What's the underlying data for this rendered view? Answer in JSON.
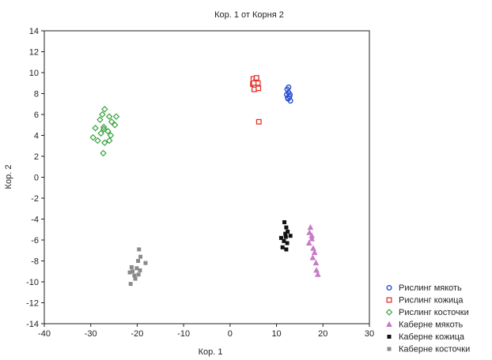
{
  "chart_data": {
    "type": "scatter",
    "title": "Кор. 1 от Корня 2",
    "xlabel": "Кор. 1",
    "ylabel": "Кор. 2",
    "xlim": [
      -40,
      30
    ],
    "ylim": [
      -14,
      14
    ],
    "xticks": [
      -40,
      -30,
      -20,
      -10,
      0,
      10,
      20,
      30
    ],
    "yticks": [
      -14,
      -12,
      -10,
      -8,
      -6,
      -4,
      -2,
      0,
      2,
      4,
      6,
      8,
      10,
      12,
      14
    ],
    "grid": false,
    "legend_position": "bottom-right",
    "series": [
      {
        "name": "Рислинг мякоть",
        "marker": "circle-open",
        "color": "#2a4fd1",
        "points": [
          [
            12.3,
            8.4
          ],
          [
            12.6,
            8.1
          ],
          [
            12.2,
            7.9
          ],
          [
            12.8,
            7.7
          ],
          [
            12.5,
            7.5
          ],
          [
            13.0,
            7.3
          ],
          [
            12.4,
            7.6
          ],
          [
            12.9,
            7.9
          ],
          [
            12.6,
            8.6
          ]
        ]
      },
      {
        "name": "Рислинг кожица",
        "marker": "square-open",
        "color": "#e5322a",
        "points": [
          [
            5.0,
            9.4
          ],
          [
            5.6,
            9.2
          ],
          [
            4.9,
            8.9
          ],
          [
            5.4,
            8.7
          ],
          [
            6.0,
            9.0
          ],
          [
            5.2,
            8.4
          ],
          [
            6.1,
            8.5
          ],
          [
            5.7,
            9.5
          ],
          [
            5.1,
            9.0
          ],
          [
            6.2,
            5.3
          ]
        ]
      },
      {
        "name": "Рислинг косточки",
        "marker": "diamond-open",
        "color": "#3aa13e",
        "points": [
          [
            -27.0,
            6.5
          ],
          [
            -27.5,
            6.0
          ],
          [
            -26.0,
            5.8
          ],
          [
            -24.5,
            5.8
          ],
          [
            -28.0,
            5.5
          ],
          [
            -25.5,
            5.3
          ],
          [
            -24.8,
            5.0
          ],
          [
            -29.0,
            4.7
          ],
          [
            -27.2,
            4.8
          ],
          [
            -26.3,
            4.4
          ],
          [
            -27.8,
            4.2
          ],
          [
            -25.7,
            4.0
          ],
          [
            -29.5,
            3.8
          ],
          [
            -28.5,
            3.5
          ],
          [
            -27.0,
            3.3
          ],
          [
            -26.0,
            3.5
          ],
          [
            -27.3,
            2.3
          ],
          [
            -27.2,
            4.6
          ]
        ]
      },
      {
        "name": "Каберне мякоть",
        "marker": "triangle",
        "color": "#c77ac8",
        "points": [
          [
            17.3,
            -4.8
          ],
          [
            17.1,
            -5.3
          ],
          [
            17.6,
            -5.9
          ],
          [
            17.0,
            -6.3
          ],
          [
            17.9,
            -6.8
          ],
          [
            18.2,
            -7.2
          ],
          [
            17.8,
            -7.7
          ],
          [
            18.5,
            -8.2
          ],
          [
            18.9,
            -9.3
          ],
          [
            17.6,
            -5.6
          ],
          [
            18.6,
            -8.9
          ]
        ]
      },
      {
        "name": "Каберне кожица",
        "marker": "square-filled",
        "color": "#111111",
        "points": [
          [
            11.7,
            -4.3
          ],
          [
            12.1,
            -4.8
          ],
          [
            12.4,
            -5.2
          ],
          [
            11.0,
            -5.8
          ],
          [
            12.0,
            -5.7
          ],
          [
            13.0,
            -5.6
          ],
          [
            11.6,
            -6.1
          ],
          [
            12.3,
            -6.3
          ],
          [
            11.3,
            -6.7
          ],
          [
            12.1,
            -6.9
          ],
          [
            11.9,
            -5.4
          ]
        ]
      },
      {
        "name": "Каберне косточки",
        "marker": "square-filled",
        "color": "#8a8a8a",
        "points": [
          [
            -19.6,
            -6.9
          ],
          [
            -19.3,
            -7.6
          ],
          [
            -19.8,
            -8.0
          ],
          [
            -18.2,
            -8.2
          ],
          [
            -21.2,
            -8.6
          ],
          [
            -20.1,
            -8.7
          ],
          [
            -19.4,
            -8.9
          ],
          [
            -21.6,
            -9.1
          ],
          [
            -20.6,
            -9.4
          ],
          [
            -19.7,
            -9.3
          ],
          [
            -20.4,
            -9.7
          ],
          [
            -21.4,
            -10.2
          ],
          [
            -21.0,
            -9.0
          ]
        ]
      }
    ]
  }
}
